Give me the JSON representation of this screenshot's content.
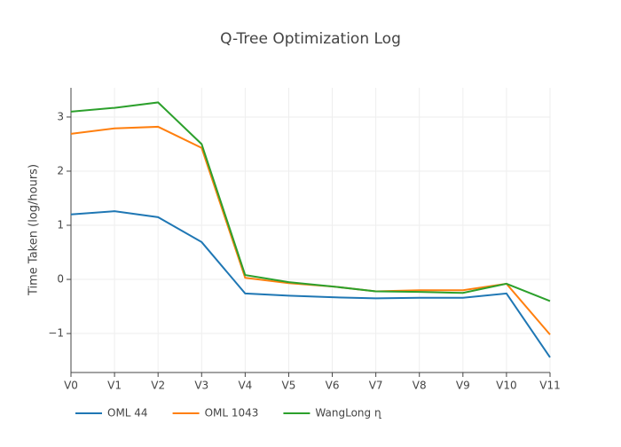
{
  "chart_data": {
    "type": "line",
    "title": "Q-Tree Optimization Log",
    "y_label": "Time Taken (log/hours)",
    "categories": [
      "V0",
      "V1",
      "V2",
      "V3",
      "V4",
      "V5",
      "V6",
      "V7",
      "V8",
      "V9",
      "V10",
      "V11"
    ],
    "series": [
      {
        "name": "OML 44",
        "color": "#1f77b4",
        "values": [
          1.2,
          1.26,
          1.15,
          0.69,
          -0.26,
          -0.3,
          -0.33,
          -0.35,
          -0.34,
          -0.34,
          -0.26,
          -1.44
        ]
      },
      {
        "name": "OML 1043",
        "color": "#ff7f0e",
        "values": [
          2.69,
          2.79,
          2.82,
          2.43,
          0.03,
          -0.07,
          -0.13,
          -0.22,
          -0.2,
          -0.2,
          -0.08,
          -1.02
        ]
      },
      {
        "name": "WangLong ղ",
        "color": "#2ca02c",
        "values": [
          3.1,
          3.17,
          3.27,
          2.5,
          0.08,
          -0.05,
          -0.13,
          -0.22,
          -0.23,
          -0.25,
          -0.08,
          -0.4
        ]
      }
    ],
    "ylim": [
      -1.72,
      3.54
    ],
    "yticks": [
      {
        "value": -1,
        "label": "−1"
      },
      0,
      1,
      2,
      3
    ],
    "grid": true,
    "legend": "bottom"
  }
}
